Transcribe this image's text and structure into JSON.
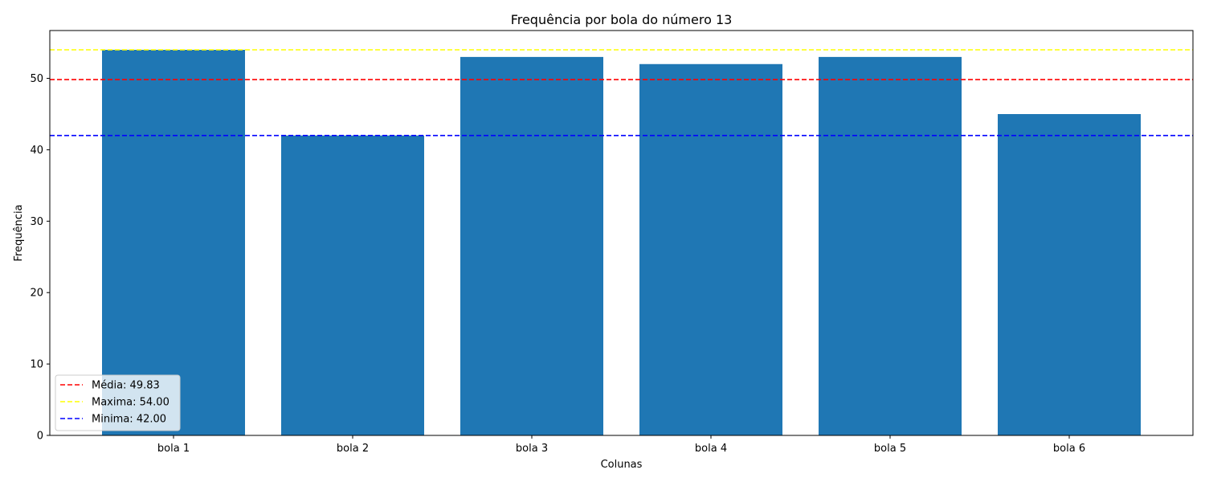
{
  "chart_data": {
    "type": "bar",
    "title": "Frequência por bola do número 13",
    "xlabel": "Colunas",
    "ylabel": "Frequência",
    "categories": [
      "bola 1",
      "bola 2",
      "bola 3",
      "bola 4",
      "bola 5",
      "bola 6"
    ],
    "values": [
      54,
      42,
      53,
      52,
      53,
      45
    ],
    "ylim": [
      0,
      56.7
    ],
    "yticks": [
      0,
      10,
      20,
      30,
      40,
      50
    ],
    "bar_color": "#1f77b4",
    "grid": false,
    "reference_lines": [
      {
        "label": "Média: 49.83",
        "value": 49.83,
        "color": "#ff0000",
        "style": "dashed"
      },
      {
        "label": "Maxima: 54.00",
        "value": 54.0,
        "color": "#ffff00",
        "style": "dashed"
      },
      {
        "label": "Minima: 42.00",
        "value": 42.0,
        "color": "#0000ff",
        "style": "dashed"
      }
    ],
    "legend_position": "lower-left"
  }
}
